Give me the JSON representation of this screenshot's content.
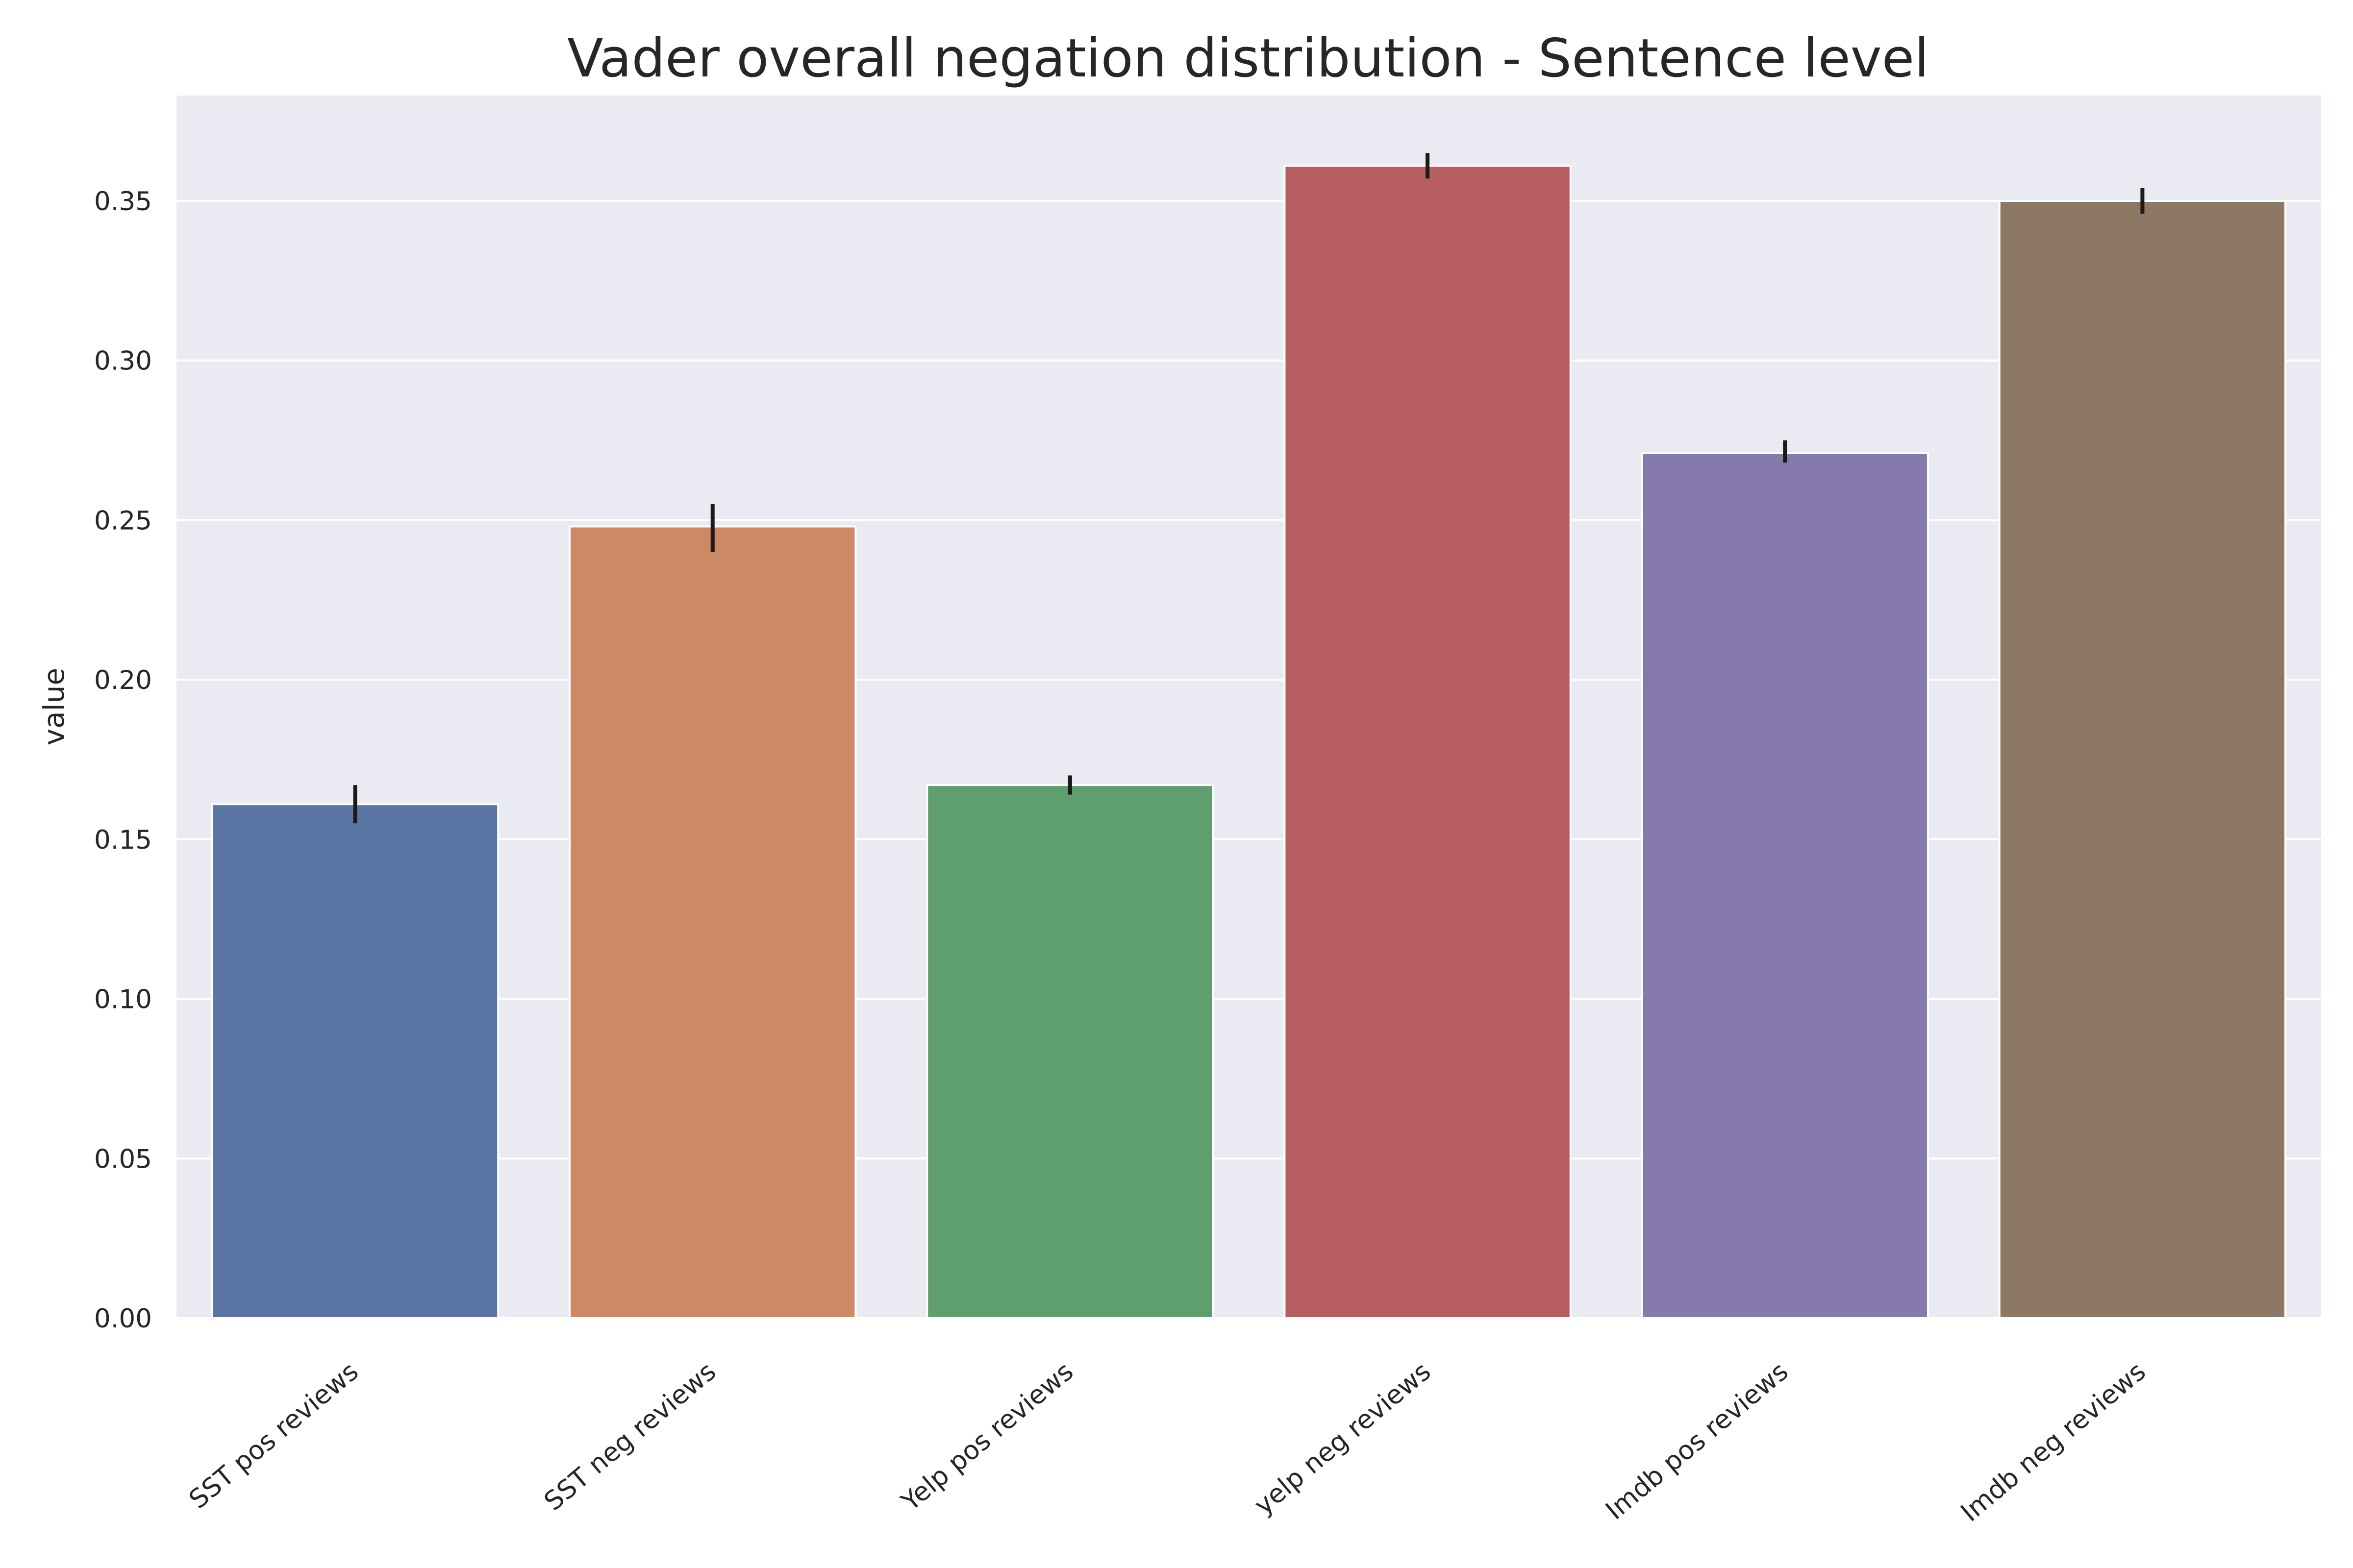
{
  "chart_data": {
    "type": "bar",
    "title": "Vader overall negation distribution - Sentence level",
    "xlabel": "",
    "ylabel": "value",
    "categories": [
      "SST pos reviews",
      "SST neg reviews",
      "Yelp pos reviews",
      "yelp neg reviews",
      "Imdb pos reviews",
      "Imdb neg reviews"
    ],
    "values": [
      0.161,
      0.248,
      0.167,
      0.361,
      0.271,
      0.35
    ],
    "error_low": [
      0.155,
      0.24,
      0.164,
      0.357,
      0.268,
      0.346
    ],
    "error_high": [
      0.167,
      0.255,
      0.17,
      0.365,
      0.275,
      0.354
    ],
    "ylim": [
      0,
      0.383
    ],
    "yticks": [
      "0.00",
      "0.05",
      "0.10",
      "0.15",
      "0.20",
      "0.25",
      "0.30",
      "0.35"
    ],
    "colors": [
      "#5975a4",
      "#cc8963",
      "#5f9e6e",
      "#b55d60",
      "#857aab",
      "#8d7866"
    ],
    "grid": true,
    "background": "#eaeaf2",
    "error_color": "#1a1a1a"
  }
}
